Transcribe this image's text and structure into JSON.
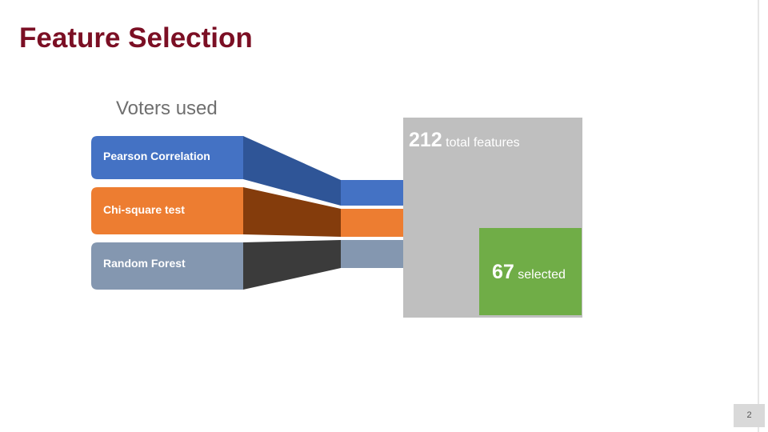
{
  "slide": {
    "title": "Feature Selection",
    "voters_title": "Voters used",
    "page_number": "2"
  },
  "voters": [
    {
      "label": "Pearson Correlation",
      "color": "#4472c4",
      "shadow_color": "#2f5597"
    },
    {
      "label": "Chi-square test",
      "color": "#ed7d31",
      "shadow_color": "#843c0c"
    },
    {
      "label": "Random Forest",
      "color": "#8497b0",
      "shadow_color": "#3b3b3b"
    }
  ],
  "features": {
    "total_count": "212",
    "total_label": "total features",
    "total_color": "#bfbfbf",
    "selected_count": "67",
    "selected_label": "selected",
    "selected_color": "#70ad47"
  }
}
